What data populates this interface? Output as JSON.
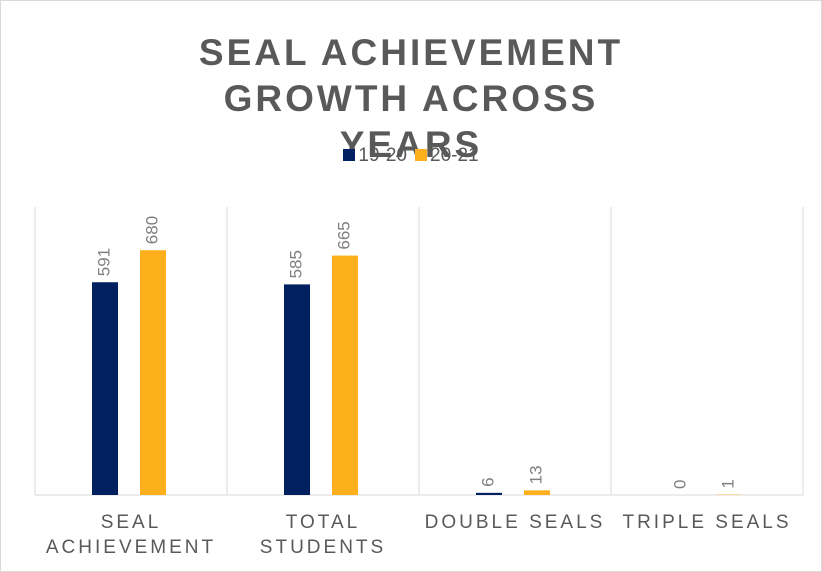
{
  "chart_data": {
    "type": "bar",
    "title": "SEAL ACHIEVEMENT GROWTH ACROSS YEARS",
    "categories": [
      "SEAL ACHIEVEMENT",
      "TOTAL STUDENTS",
      "DOUBLE SEALS",
      "TRIPLE SEALS"
    ],
    "series": [
      {
        "name": "19-20",
        "color": "#002060",
        "values": [
          591,
          585,
          6,
          0
        ]
      },
      {
        "name": "20-21",
        "color": "#fdb01b",
        "values": [
          680,
          665,
          13,
          1
        ]
      }
    ],
    "ylim": [
      0,
      800
    ],
    "legend": "top"
  }
}
